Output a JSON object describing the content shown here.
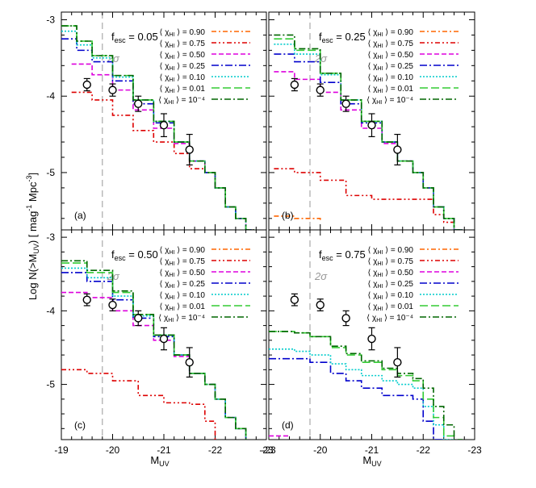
{
  "figure": {
    "ylabel_main": "Log N(>M",
    "ylabel_sub": "UV",
    "ylabel_tail": ")  [ mag",
    "ylabel_sup1": "-1",
    "ylabel_mid": " Mpc",
    "ylabel_sup2": "-3",
    "ylabel_end": "]",
    "xlabel_main": "M",
    "xlabel_sub": "UV",
    "sigma_label": "2σ",
    "legend_prefix": "⟨ χ",
    "legend_sub": "HI",
    "legend_suffix": " ⟩ = ",
    "legend_values": [
      "0.90",
      "0.75",
      "0.50",
      "0.25",
      "0.10",
      "0.01",
      "10⁻⁴"
    ],
    "legend_colors": [
      "#ff6600",
      "#dd0000",
      "#dd00dd",
      "#0000cc",
      "#00cccc",
      "#33cc33",
      "#006600"
    ],
    "fesc_prefix": "f",
    "fesc_sub": "esc",
    "fesc_eq": " = "
  },
  "chart_data": [
    {
      "type": "line",
      "panel": "(a)",
      "fesc": "0.05",
      "x_range": [
        -19,
        -23
      ],
      "y_range": [
        -5.75,
        -2.9
      ],
      "x_ticks": [
        "-19",
        "-20",
        "-21",
        "-22",
        "-23"
      ],
      "y_ticks": [
        "-3",
        "-4",
        "-5"
      ],
      "observed": {
        "x": [
          -19.5,
          -20.0,
          -20.5,
          -21.0,
          -21.5
        ],
        "y": [
          -3.85,
          -3.92,
          -4.1,
          -4.38,
          -4.7
        ],
        "yerr": [
          0.08,
          0.08,
          0.1,
          0.15,
          0.2
        ]
      },
      "series": [
        {
          "name": "0.75",
          "x": [
            -19.2,
            -19.6,
            -20.0,
            -20.4,
            -20.8,
            -21.2,
            -21.5,
            -21.8,
            -22.0,
            -22.2,
            -22.4,
            -22.6,
            -22.75
          ],
          "y": [
            -3.95,
            -4.05,
            -4.25,
            -4.45,
            -4.6,
            -4.75,
            -4.95,
            -5.0,
            -5.2,
            -5.45,
            -5.6,
            -5.75,
            -5.8
          ]
        },
        {
          "name": "0.50",
          "x": [
            -19.2,
            -19.6,
            -20.0,
            -20.4,
            -20.8,
            -21.2,
            -21.5,
            -21.8,
            -22.0,
            -22.2,
            -22.4,
            -22.6,
            -22.75
          ],
          "y": [
            -3.58,
            -3.72,
            -3.92,
            -4.18,
            -4.42,
            -4.62,
            -4.85,
            -5.0,
            -5.2,
            -5.45,
            -5.6,
            -5.75,
            -5.8
          ]
        },
        {
          "name": "0.25",
          "x": [
            -19.0,
            -19.3,
            -19.6,
            -20.0,
            -20.4,
            -20.8,
            -21.2,
            -21.5,
            -21.8,
            -22.0,
            -22.2,
            -22.4,
            -22.6,
            -22.75
          ],
          "y": [
            -3.25,
            -3.4,
            -3.55,
            -3.8,
            -4.1,
            -4.35,
            -4.6,
            -4.85,
            -5.0,
            -5.2,
            -5.45,
            -5.6,
            -5.75,
            -5.8
          ]
        },
        {
          "name": "0.10",
          "x": [
            -19.0,
            -19.3,
            -19.6,
            -20.0,
            -20.4,
            -20.8,
            -21.2,
            -21.5,
            -21.8,
            -22.0,
            -22.2,
            -22.4,
            -22.6,
            -22.75
          ],
          "y": [
            -3.15,
            -3.33,
            -3.5,
            -3.75,
            -4.05,
            -4.33,
            -4.6,
            -4.85,
            -5.0,
            -5.2,
            -5.45,
            -5.6,
            -5.75,
            -5.8
          ]
        },
        {
          "name": "0.01",
          "x": [
            -19.0,
            -19.3,
            -19.6,
            -20.0,
            -20.4,
            -20.8,
            -21.2,
            -21.5,
            -21.8,
            -22.0,
            -22.2,
            -22.4,
            -22.6,
            -22.75
          ],
          "y": [
            -3.08,
            -3.28,
            -3.47,
            -3.73,
            -4.05,
            -4.33,
            -4.6,
            -4.85,
            -5.0,
            -5.2,
            -5.45,
            -5.6,
            -5.75,
            -5.8
          ]
        },
        {
          "name": "10⁻⁴",
          "x": [
            -19.0,
            -19.3,
            -19.6,
            -20.0,
            -20.4,
            -20.8,
            -21.2,
            -21.5,
            -21.8,
            -22.0,
            -22.2,
            -22.4,
            -22.6,
            -22.75
          ],
          "y": [
            -3.08,
            -3.28,
            -3.47,
            -3.73,
            -4.05,
            -4.33,
            -4.6,
            -4.85,
            -5.0,
            -5.2,
            -5.45,
            -5.6,
            -5.75,
            -5.8
          ]
        }
      ]
    },
    {
      "type": "line",
      "panel": "(b)",
      "fesc": "0.25",
      "x_range": [
        -19,
        -23
      ],
      "y_range": [
        -5.75,
        -2.9
      ],
      "x_ticks": [
        "-19",
        "-20",
        "-21",
        "-22",
        "-23"
      ],
      "y_ticks": [
        "-3",
        "-4",
        "-5"
      ],
      "observed": {
        "x": [
          -19.5,
          -20.0,
          -20.5,
          -21.0,
          -21.5
        ],
        "y": [
          -3.85,
          -3.92,
          -4.1,
          -4.38,
          -4.7
        ],
        "yerr": [
          0.08,
          0.08,
          0.1,
          0.15,
          0.2
        ]
      },
      "series": [
        {
          "name": "0.90",
          "x": [
            -19.1,
            -19.5,
            -20.0
          ],
          "y": [
            -5.57,
            -5.6,
            -5.65
          ]
        },
        {
          "name": "0.75",
          "x": [
            -19.1,
            -19.5,
            -20.0,
            -20.5,
            -21.0,
            -21.5,
            -22.0,
            -22.2,
            -22.4,
            -22.6,
            -22.75
          ],
          "y": [
            -4.95,
            -5.0,
            -5.1,
            -5.3,
            -5.35,
            -5.35,
            -5.35,
            -5.55,
            -5.65,
            -5.75,
            -5.8
          ]
        },
        {
          "name": "0.50",
          "x": [
            -19.1,
            -19.5,
            -20.0,
            -20.4,
            -20.8,
            -21.2,
            -21.5,
            -21.8,
            -22.0,
            -22.2,
            -22.4,
            -22.6,
            -22.75
          ],
          "y": [
            -3.68,
            -3.78,
            -3.95,
            -4.18,
            -4.42,
            -4.62,
            -4.85,
            -5.0,
            -5.2,
            -5.45,
            -5.6,
            -5.75,
            -5.8
          ]
        },
        {
          "name": "0.25",
          "x": [
            -19.1,
            -19.5,
            -20.0,
            -20.4,
            -20.8,
            -21.2,
            -21.5,
            -21.8,
            -22.0,
            -22.2,
            -22.4,
            -22.6,
            -22.75
          ],
          "y": [
            -3.45,
            -3.55,
            -3.82,
            -4.1,
            -4.35,
            -4.6,
            -4.85,
            -5.0,
            -5.2,
            -5.45,
            -5.6,
            -5.75,
            -5.8
          ]
        },
        {
          "name": "0.10",
          "x": [
            -19.1,
            -19.5,
            -20.0,
            -20.4,
            -20.8,
            -21.2,
            -21.5,
            -21.8,
            -22.0,
            -22.2,
            -22.4,
            -22.6,
            -22.75
          ],
          "y": [
            -3.32,
            -3.45,
            -3.72,
            -4.05,
            -4.33,
            -4.6,
            -4.85,
            -5.0,
            -5.2,
            -5.45,
            -5.6,
            -5.75,
            -5.8
          ]
        },
        {
          "name": "0.01",
          "x": [
            -19.1,
            -19.5,
            -20.0,
            -20.4,
            -20.8,
            -21.2,
            -21.5,
            -21.8,
            -22.0,
            -22.2,
            -22.4,
            -22.6,
            -22.75
          ],
          "y": [
            -3.25,
            -3.4,
            -3.7,
            -4.05,
            -4.33,
            -4.6,
            -4.85,
            -5.0,
            -5.2,
            -5.45,
            -5.6,
            -5.75,
            -5.8
          ]
        },
        {
          "name": "10⁻⁴",
          "x": [
            -19.1,
            -19.5,
            -20.0,
            -20.4,
            -20.8,
            -21.2,
            -21.5,
            -21.8,
            -22.0,
            -22.2,
            -22.4,
            -22.6,
            -22.75
          ],
          "y": [
            -3.2,
            -3.38,
            -3.7,
            -4.05,
            -4.33,
            -4.6,
            -4.85,
            -5.0,
            -5.2,
            -5.45,
            -5.6,
            -5.75,
            -5.8
          ]
        }
      ]
    },
    {
      "type": "line",
      "panel": "(c)",
      "fesc": "0.50",
      "x_range": [
        -19,
        -23
      ],
      "y_range": [
        -5.75,
        -2.9
      ],
      "x_ticks": [
        "-19",
        "-20",
        "-21",
        "-22",
        "-23"
      ],
      "y_ticks": [
        "-3",
        "-4",
        "-5"
      ],
      "observed": {
        "x": [
          -19.5,
          -20.0,
          -20.5,
          -21.0,
          -21.5
        ],
        "y": [
          -3.85,
          -3.92,
          -4.1,
          -4.38,
          -4.7
        ],
        "yerr": [
          0.08,
          0.08,
          0.1,
          0.15,
          0.2
        ]
      },
      "series": [
        {
          "name": "0.75",
          "x": [
            -19.0,
            -19.5,
            -20.0,
            -20.5,
            -21.0,
            -21.5,
            -21.8,
            -22.0
          ],
          "y": [
            -4.8,
            -4.85,
            -4.95,
            -5.15,
            -5.25,
            -5.27,
            -5.5,
            -5.75
          ]
        },
        {
          "name": "0.50",
          "x": [
            -19.0,
            -19.5,
            -20.0,
            -20.4,
            -20.8,
            -21.2,
            -21.5,
            -21.8,
            -22.0,
            -22.2,
            -22.4,
            -22.6
          ],
          "y": [
            -3.75,
            -3.82,
            -4.0,
            -4.2,
            -4.4,
            -4.62,
            -4.85,
            -5.0,
            -5.2,
            -5.45,
            -5.6,
            -5.75
          ]
        },
        {
          "name": "0.25",
          "x": [
            -19.0,
            -19.5,
            -20.0,
            -20.4,
            -20.8,
            -21.2,
            -21.5,
            -21.8,
            -22.0,
            -22.2,
            -22.4,
            -22.6
          ],
          "y": [
            -3.48,
            -3.6,
            -3.85,
            -4.1,
            -4.35,
            -4.6,
            -4.85,
            -5.0,
            -5.2,
            -5.45,
            -5.6,
            -5.75
          ]
        },
        {
          "name": "0.10",
          "x": [
            -19.0,
            -19.5,
            -20.0,
            -20.4,
            -20.8,
            -21.2,
            -21.5,
            -21.8,
            -22.0,
            -22.2,
            -22.4,
            -22.6
          ],
          "y": [
            -3.42,
            -3.55,
            -3.8,
            -4.07,
            -4.33,
            -4.6,
            -4.85,
            -5.0,
            -5.2,
            -5.45,
            -5.6,
            -5.75
          ]
        },
        {
          "name": "0.01",
          "x": [
            -19.0,
            -19.5,
            -20.0,
            -20.4,
            -20.8,
            -21.2,
            -21.5,
            -21.8,
            -22.0,
            -22.2,
            -22.4,
            -22.6
          ],
          "y": [
            -3.35,
            -3.48,
            -3.75,
            -4.05,
            -4.33,
            -4.6,
            -4.85,
            -5.0,
            -5.2,
            -5.45,
            -5.6,
            -5.75
          ]
        },
        {
          "name": "10⁻⁴",
          "x": [
            -19.0,
            -19.5,
            -20.0,
            -20.4,
            -20.8,
            -21.2,
            -21.5,
            -21.8,
            -22.0,
            -22.2,
            -22.4,
            -22.6
          ],
          "y": [
            -3.32,
            -3.45,
            -3.73,
            -4.05,
            -4.33,
            -4.6,
            -4.85,
            -5.0,
            -5.2,
            -5.45,
            -5.6,
            -5.75
          ]
        }
      ]
    },
    {
      "type": "line",
      "panel": "(d)",
      "fesc": "0.75",
      "x_range": [
        -19,
        -23
      ],
      "y_range": [
        -5.75,
        -2.9
      ],
      "x_ticks": [
        "-19",
        "-20",
        "-21",
        "-22",
        "-23"
      ],
      "y_ticks": [
        "-3",
        "-4",
        "-5"
      ],
      "observed": {
        "x": [
          -19.5,
          -20.0,
          -20.5,
          -21.0,
          -21.5
        ],
        "y": [
          -3.85,
          -3.92,
          -4.1,
          -4.38,
          -4.7
        ],
        "yerr": [
          0.08,
          0.08,
          0.1,
          0.15,
          0.2
        ]
      },
      "series": [
        {
          "name": "0.50",
          "x": [
            -19.0,
            -19.4
          ],
          "y": [
            -5.7,
            -5.7
          ]
        },
        {
          "name": "0.25",
          "x": [
            -19.0,
            -19.5,
            -19.8,
            -20.2,
            -20.5,
            -20.8,
            -21.2,
            -21.5,
            -21.8,
            -22.0,
            -22.2,
            -22.4
          ],
          "y": [
            -4.65,
            -4.65,
            -4.7,
            -4.85,
            -4.95,
            -5.05,
            -5.15,
            -5.15,
            -5.2,
            -5.5,
            -5.75,
            -5.8
          ]
        },
        {
          "name": "0.10",
          "x": [
            -19.0,
            -19.5,
            -19.8,
            -20.2,
            -20.5,
            -20.8,
            -21.2,
            -21.5,
            -21.8,
            -22.0,
            -22.2,
            -22.4,
            -22.6
          ],
          "y": [
            -4.52,
            -4.55,
            -4.6,
            -4.72,
            -4.8,
            -4.88,
            -4.95,
            -5.0,
            -5.05,
            -5.3,
            -5.55,
            -5.75,
            -5.8
          ]
        },
        {
          "name": "0.01",
          "x": [
            -19.0,
            -19.5,
            -19.8,
            -20.2,
            -20.5,
            -20.8,
            -21.2,
            -21.5,
            -21.8,
            -22.0,
            -22.2,
            -22.4,
            -22.6
          ],
          "y": [
            -4.28,
            -4.3,
            -4.35,
            -4.5,
            -4.6,
            -4.7,
            -4.8,
            -4.88,
            -4.95,
            -5.2,
            -5.45,
            -5.7,
            -5.8
          ]
        },
        {
          "name": "10⁻⁴",
          "x": [
            -19.0,
            -19.5,
            -19.8,
            -20.2,
            -20.5,
            -20.8,
            -21.2,
            -21.5,
            -21.8,
            -22.0,
            -22.2,
            -22.4,
            -22.6,
            -22.75
          ],
          "y": [
            -4.28,
            -4.3,
            -4.35,
            -4.48,
            -4.58,
            -4.68,
            -4.78,
            -4.85,
            -4.92,
            -5.05,
            -5.3,
            -5.55,
            -5.75,
            -5.8
          ]
        }
      ]
    }
  ]
}
